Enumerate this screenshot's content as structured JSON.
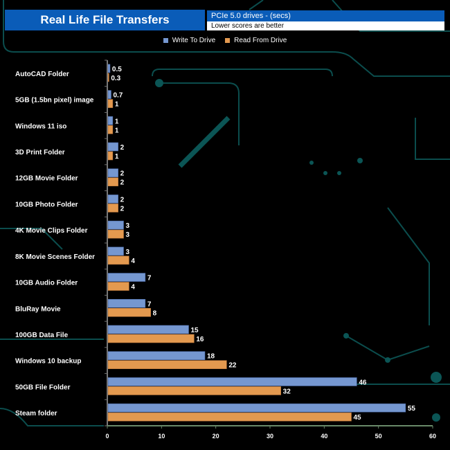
{
  "chart_data": {
    "type": "bar",
    "orientation": "horizontal",
    "title": "Real Life File Transfers",
    "subtitle": "PCIe 5.0 drives - (secs)",
    "note": "Lower scores are better",
    "categories": [
      "AutoCAD Folder",
      "5GB (1.5bn pixel) image",
      "Windows 11 iso",
      "3D Print Folder",
      "12GB Movie Folder",
      "10GB Photo Folder",
      "4K Movie Clips Folder",
      "8K Movie Scenes Folder",
      "10GB Audio Folder",
      "BluRay Movie",
      "100GB Data File",
      "Windows 10 backup",
      "50GB File Folder",
      "Steam folder"
    ],
    "series": [
      {
        "name": "Write To  Drive",
        "color": "#7597d0",
        "values": [
          0.5,
          0.7,
          1,
          2,
          2,
          2,
          3,
          3,
          7,
          7,
          15,
          18,
          46,
          55
        ]
      },
      {
        "name": "Read From  Drive",
        "color": "#e3994f",
        "values": [
          0.3,
          1,
          1,
          1,
          2,
          2,
          3,
          4,
          4,
          8,
          16,
          22,
          32,
          45
        ]
      }
    ],
    "xlim": [
      0,
      60
    ],
    "xticks": [
      0,
      10,
      20,
      30,
      40,
      50,
      60
    ],
    "grid": false,
    "legend_position": "top"
  }
}
